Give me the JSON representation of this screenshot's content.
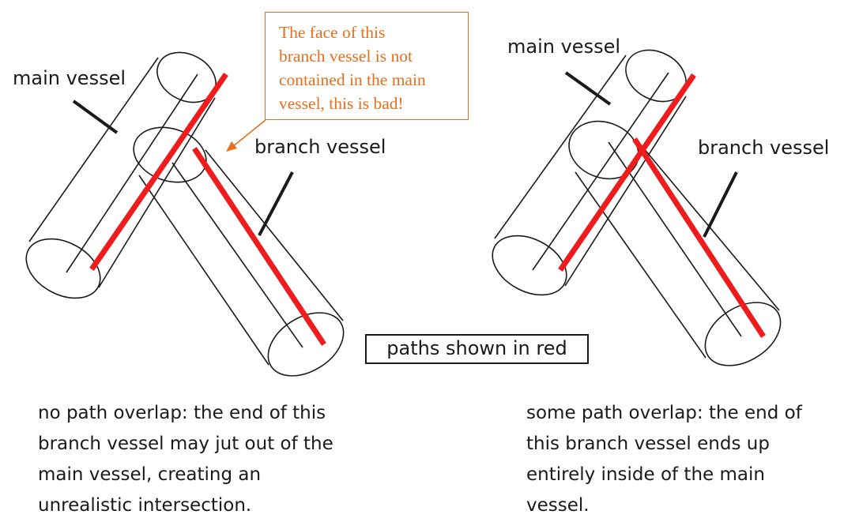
{
  "left_diagram": {
    "main_vessel_label": "main vessel",
    "branch_vessel_label": "branch vessel",
    "note": [
      "The face of this",
      "branch vessel is not",
      "contained in the main",
      "vessel, this is bad!"
    ]
  },
  "right_diagram": {
    "main_vessel_label": "main vessel",
    "branch_vessel_label": "branch vessel"
  },
  "legend": {
    "label": "paths shown in red"
  },
  "captions": {
    "left": [
      "no path overlap:  the end of this",
      "branch vessel may jut out of the",
      "main vessel, creating an",
      "unrealistic intersection."
    ],
    "right": [
      "some path overlap:  the end of",
      "this branch vessel ends up",
      "entirely inside of the main",
      "vessel."
    ]
  },
  "colors": {
    "path": "#ee1c1c",
    "note": "#e4701e",
    "outline": "#1a1a1a"
  }
}
